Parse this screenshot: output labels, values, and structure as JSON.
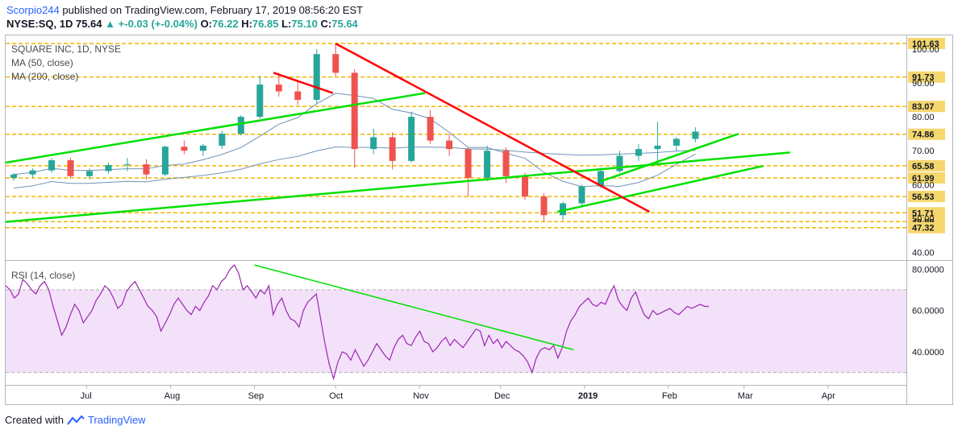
{
  "header": {
    "author": "Scorpio244",
    "published": "published on TradingView.com, February 17, 2019 08:56:20 EST",
    "symbol": "NYSE:SQ, 1D",
    "last": "75.64",
    "change": "+-0.03 (+-0.04%)",
    "open_label": "O:",
    "open": "76.22",
    "high_label": "H:",
    "high": "76.85",
    "low_label": "L:",
    "low": "75.10",
    "close_label": "C:",
    "close": "75.64"
  },
  "legend": {
    "title": "SQUARE INC, 1D, NYSE",
    "ma50": "MA (50, close)",
    "ma200": "MA (200, close)",
    "rsi": "RSI (14, close)"
  },
  "footer": {
    "created_with": "Created with",
    "brand": "TradingView"
  },
  "colors": {
    "up": "#26a69a",
    "down": "#ef5350",
    "trend_red": "#ff0000",
    "trend_green": "#00e000",
    "rsi_line": "#9c27b0",
    "rsi_band": "#f3e1fa",
    "level": "#f2b600",
    "ma": "#6e93b8"
  },
  "chart_data": [
    {
      "type": "candlestick",
      "title": "SQUARE INC, 1D, NYSE",
      "ylim": [
        38,
        104
      ],
      "y_ticks": [
        40,
        50,
        60,
        70,
        80,
        90,
        100
      ],
      "x_ticks": [
        "Jul",
        "Aug",
        "Sep",
        "Oct",
        "Nov",
        "Dec",
        "2019",
        "Feb",
        "Mar",
        "Apr"
      ],
      "horizontal_levels": [
        "101.63",
        "91.73",
        "83.07",
        "74.86",
        "65.58",
        "61.99",
        "56.53",
        "51.71",
        "49.09",
        "47.32"
      ],
      "ohlc_key": [
        "date",
        "open",
        "high",
        "low",
        "close"
      ],
      "candles": [
        [
          "2018-06-04",
          62.0,
          63.4,
          61.2,
          63.0
        ],
        [
          "2018-06-11",
          63.0,
          64.8,
          62.0,
          64.2
        ],
        [
          "2018-06-18",
          64.2,
          67.8,
          63.5,
          67.2
        ],
        [
          "2018-06-25",
          67.2,
          67.9,
          62.0,
          62.5
        ],
        [
          "2018-07-02",
          62.5,
          64.8,
          61.5,
          64.0
        ],
        [
          "2018-07-09",
          64.0,
          66.5,
          63.2,
          65.8
        ],
        [
          "2018-07-16",
          65.8,
          67.9,
          64.0,
          66.0
        ],
        [
          "2018-07-23",
          66.0,
          67.5,
          61.5,
          63.0
        ],
        [
          "2018-07-30",
          63.0,
          71.5,
          62.5,
          71.2
        ],
        [
          "2018-08-06",
          71.2,
          73.0,
          69.0,
          70.0
        ],
        [
          "2018-08-13",
          70.0,
          72.0,
          68.5,
          71.5
        ],
        [
          "2018-08-20",
          71.5,
          75.8,
          70.5,
          75.0
        ],
        [
          "2018-08-27",
          75.0,
          80.5,
          74.5,
          80.0
        ],
        [
          "2018-09-03",
          80.0,
          92.0,
          79.5,
          89.5
        ],
        [
          "2018-09-10",
          89.5,
          93.0,
          86.0,
          87.5
        ],
        [
          "2018-09-17",
          87.5,
          91.0,
          83.5,
          85.0
        ],
        [
          "2018-09-24",
          85.0,
          100.0,
          84.0,
          98.5
        ],
        [
          "2018-10-01",
          98.5,
          101.6,
          92.0,
          93.0
        ],
        [
          "2018-10-08",
          93.0,
          94.0,
          65.0,
          70.5
        ],
        [
          "2018-10-15",
          70.5,
          76.5,
          69.0,
          74.0
        ],
        [
          "2018-10-22",
          74.0,
          75.5,
          64.5,
          67.0
        ],
        [
          "2018-10-29",
          67.0,
          81.5,
          66.5,
          80.0
        ],
        [
          "2018-11-05",
          80.0,
          82.0,
          72.0,
          73.0
        ],
        [
          "2018-11-12",
          73.0,
          75.0,
          68.5,
          70.5
        ],
        [
          "2018-11-19",
          70.5,
          71.0,
          56.5,
          62.0
        ],
        [
          "2018-11-26",
          62.0,
          71.5,
          61.0,
          70.0
        ],
        [
          "2018-12-03",
          70.0,
          71.0,
          60.5,
          62.5
        ],
        [
          "2018-12-10",
          62.5,
          63.5,
          55.5,
          56.5
        ],
        [
          "2018-12-17",
          56.5,
          57.5,
          49.1,
          51.0
        ],
        [
          "2018-12-24",
          51.0,
          55.0,
          49.5,
          54.5
        ],
        [
          "2018-12-31",
          54.5,
          60.0,
          53.5,
          59.5
        ],
        [
          "2019-01-07",
          59.5,
          65.0,
          59.0,
          64.0
        ],
        [
          "2019-01-14",
          64.0,
          70.0,
          63.5,
          68.5
        ],
        [
          "2019-01-21",
          68.5,
          72.0,
          67.0,
          70.5
        ],
        [
          "2019-01-28",
          70.5,
          78.5,
          66.0,
          71.5
        ],
        [
          "2019-02-04",
          71.5,
          74.0,
          70.0,
          73.5
        ],
        [
          "2019-02-11",
          73.5,
          76.9,
          72.5,
          75.64
        ]
      ]
    },
    {
      "type": "line",
      "title": "RSI (14, close)",
      "ylim": [
        24,
        84
      ],
      "y_ticks": [
        "80.0000",
        "60.0000",
        "40.0000"
      ],
      "band": [
        30,
        70
      ],
      "series": [
        {
          "x_start": "2018-06-01",
          "values": [
            72,
            70,
            66,
            68,
            75,
            73,
            70,
            68,
            72,
            74,
            70,
            62,
            55,
            48,
            52,
            58,
            63,
            60,
            54,
            57,
            60,
            65,
            68,
            72,
            70,
            66,
            61,
            63,
            69,
            72,
            74,
            70,
            66,
            62,
            60,
            57,
            50,
            54,
            58,
            63,
            66,
            63,
            60,
            58,
            62,
            60,
            64,
            67,
            72,
            70,
            74,
            76,
            80,
            82,
            78,
            70,
            72,
            69,
            66,
            70,
            68,
            72,
            58,
            63,
            66,
            60,
            56,
            55,
            52,
            60,
            64,
            66,
            68,
            56,
            44,
            34,
            27,
            35,
            40,
            39,
            36,
            41,
            37,
            33,
            36,
            40,
            44,
            41,
            38,
            36,
            42,
            46,
            48,
            44,
            43,
            47,
            50,
            45,
            44,
            40,
            42,
            45,
            47,
            43,
            46,
            44,
            42,
            45,
            48,
            51,
            50,
            43,
            48,
            44,
            46,
            42,
            45,
            43,
            41,
            40,
            38,
            35,
            30,
            37,
            41,
            42,
            41,
            43,
            37,
            42,
            50,
            55,
            58,
            62,
            64,
            66,
            63,
            62,
            64,
            63,
            68,
            72,
            65,
            62,
            60,
            66,
            69,
            63,
            58,
            56,
            60,
            58,
            59,
            60,
            61,
            59,
            58,
            60,
            62,
            61,
            62,
            63,
            62,
            62
          ]
        }
      ]
    }
  ]
}
